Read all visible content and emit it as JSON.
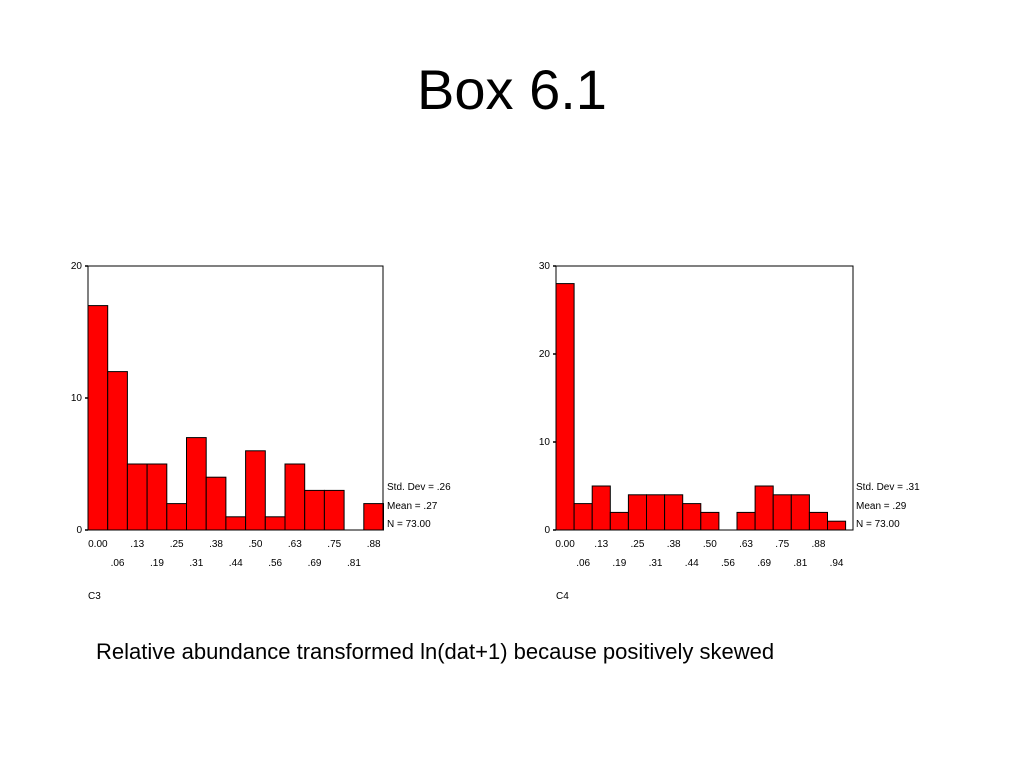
{
  "title": "Box 6.1",
  "caption": "Relative abundance transformed ln(dat+1) because positively skewed",
  "colors": {
    "bar": "#ff0000",
    "outline": "#000000"
  },
  "chart_data": [
    {
      "type": "bar",
      "variable": "C3",
      "ylim": [
        0,
        20
      ],
      "yticks": [
        "0",
        "10",
        "20"
      ],
      "bin_start": 0,
      "bin_width": 0.0625,
      "tick_labels_top": [
        "0.00",
        ".13",
        ".25",
        ".38",
        ".50",
        ".63",
        ".75",
        ".88"
      ],
      "tick_labels_bottom": [
        ".06",
        ".19",
        ".31",
        ".44",
        ".56",
        ".69",
        ".81"
      ],
      "values": [
        17,
        12,
        5,
        5,
        2,
        7,
        4,
        1,
        6,
        1,
        5,
        3,
        3,
        0,
        2
      ],
      "stats": [
        "Std. Dev = .26",
        "Mean = .27",
        "N = 73.00"
      ],
      "grid": false
    },
    {
      "type": "bar",
      "variable": "C4",
      "ylim": [
        0,
        30
      ],
      "yticks": [
        "0",
        "10",
        "20",
        "30"
      ],
      "bin_start": 0,
      "bin_width": 0.0625,
      "tick_labels_top": [
        "0.00",
        ".13",
        ".25",
        ".38",
        ".50",
        ".63",
        ".75",
        ".88"
      ],
      "tick_labels_bottom": [
        ".06",
        ".19",
        ".31",
        ".44",
        ".56",
        ".69",
        ".81",
        ".94"
      ],
      "values": [
        28,
        3,
        5,
        2,
        4,
        4,
        4,
        3,
        2,
        0,
        2,
        5,
        4,
        4,
        2,
        1
      ],
      "stats": [
        "Std. Dev = .31",
        "Mean = .29",
        "N = 73.00"
      ],
      "grid": false
    }
  ]
}
